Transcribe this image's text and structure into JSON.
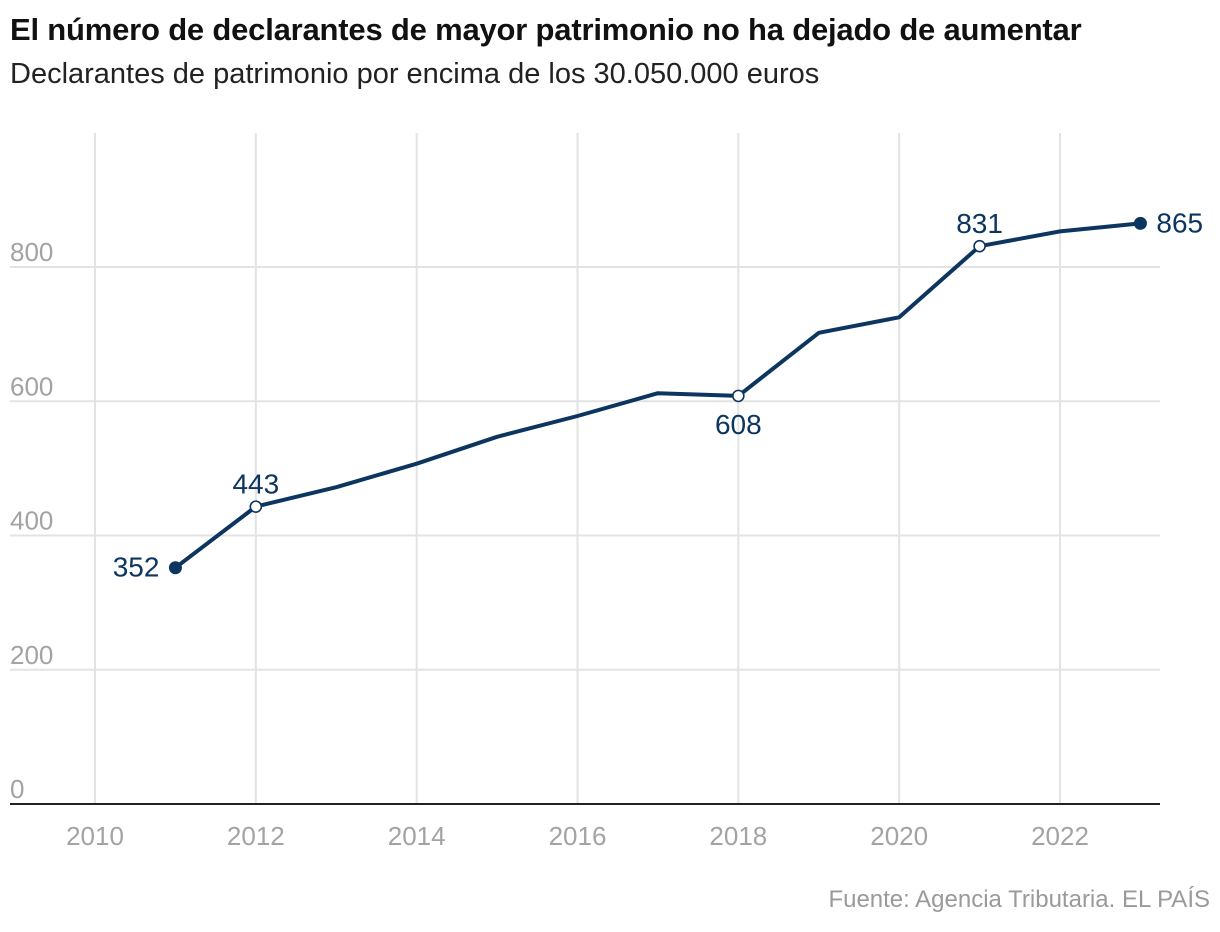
{
  "chart_data": {
    "type": "line",
    "title": "El número de declarantes de mayor patrimonio no ha dejado de aumentar",
    "subtitle": "Declarantes de patrimonio por encima de los 30.050.000 euros",
    "source": "Fuente: Agencia Tributaria. EL PAÍS",
    "xlabel": "",
    "ylabel": "",
    "xlim": [
      2009,
      2024.2
    ],
    "ylim": [
      0,
      1000
    ],
    "x_ticks": [
      2010,
      2012,
      2014,
      2016,
      2018,
      2020,
      2022
    ],
    "y_ticks": [
      0,
      200,
      400,
      600,
      800
    ],
    "grid": true,
    "series": [
      {
        "name": "Declarantes",
        "color": "#0c3560",
        "x": [
          2011,
          2012,
          2013,
          2014,
          2015,
          2016,
          2017,
          2018,
          2019,
          2020,
          2021,
          2022,
          2023
        ],
        "values": [
          352,
          443,
          472,
          507,
          547,
          578,
          612,
          608,
          702,
          725,
          831,
          853,
          865
        ]
      }
    ],
    "annotations": [
      {
        "x": 2011,
        "value": 352,
        "label": "352",
        "marker": "solid",
        "position": "left"
      },
      {
        "x": 2012,
        "value": 443,
        "label": "443",
        "marker": "hollow",
        "position": "above"
      },
      {
        "x": 2018,
        "value": 608,
        "label": "608",
        "marker": "hollow",
        "position": "below"
      },
      {
        "x": 2021,
        "value": 831,
        "label": "831",
        "marker": "hollow",
        "position": "above"
      },
      {
        "x": 2023,
        "value": 865,
        "label": "865",
        "marker": "solid",
        "position": "right"
      }
    ]
  }
}
